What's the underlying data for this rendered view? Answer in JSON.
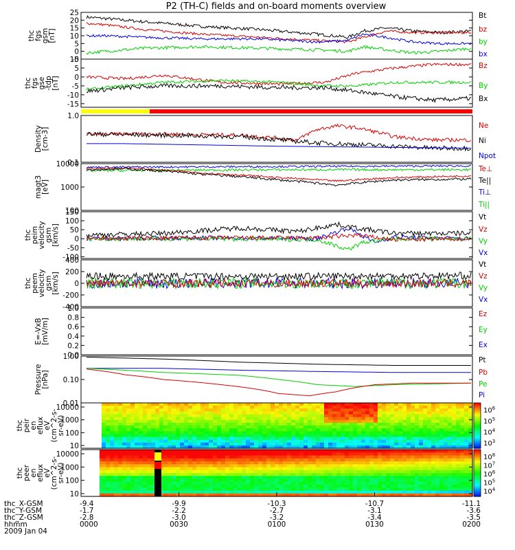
{
  "title": "P2 (TH-C) fields and on-board moments overview",
  "date_label": "2009 Jan 04",
  "colors": {
    "black": "#000000",
    "red": "#d40000",
    "green": "#00d000",
    "blue": "#0000e0",
    "yellow": "#ffff00",
    "barred": "#ff0000"
  },
  "chart_data": [
    {
      "id": "fgs_gsm",
      "type": "line",
      "ylabel": [
        "thc",
        "fgs",
        "gsm",
        "[nT]"
      ],
      "yticks": [
        "25",
        "20",
        "15",
        "10",
        "5",
        "0",
        "-5"
      ],
      "ylim": [
        -5,
        25
      ],
      "legend": [
        {
          "name": "Bt",
          "color": "black"
        },
        {
          "name": "bz",
          "color": "red"
        },
        {
          "name": "by",
          "color": "green"
        },
        {
          "name": "bx",
          "color": "blue"
        }
      ],
      "series": [
        {
          "name": "Bt",
          "color": "black",
          "x": [
            0,
            0.05,
            0.15,
            0.3,
            0.45,
            0.6,
            0.68,
            0.72,
            0.78,
            0.85,
            0.92,
            1.0
          ],
          "y": [
            22,
            21,
            19,
            16,
            14,
            11,
            9,
            13,
            15,
            13,
            12,
            13
          ],
          "noise": 1.0
        },
        {
          "name": "bz",
          "color": "red",
          "x": [
            0,
            0.05,
            0.15,
            0.3,
            0.45,
            0.6,
            0.68,
            0.72,
            0.78,
            0.85,
            0.92,
            1.0
          ],
          "y": [
            18,
            17,
            14,
            11,
            9,
            7,
            6,
            9,
            13,
            12,
            12,
            12
          ],
          "noise": 0.8
        },
        {
          "name": "by",
          "color": "green",
          "x": [
            0,
            0.05,
            0.15,
            0.3,
            0.45,
            0.6,
            0.68,
            0.72,
            0.78,
            0.85,
            0.92,
            1.0
          ],
          "y": [
            -1,
            0,
            2,
            3,
            2,
            1,
            0,
            3,
            1,
            -1,
            0,
            2
          ],
          "noise": 1.0
        },
        {
          "name": "bx",
          "color": "blue",
          "x": [
            0,
            0.05,
            0.15,
            0.3,
            0.45,
            0.6,
            0.68,
            0.72,
            0.78,
            0.85,
            0.92,
            1.0
          ],
          "y": [
            10,
            10,
            9,
            8,
            8,
            6,
            7,
            11,
            9,
            6,
            5,
            5
          ],
          "noise": 0.8
        }
      ]
    },
    {
      "id": "fgs_gse",
      "type": "line",
      "ylabel": [
        "thc",
        "fgs",
        "gse",
        "-tdp",
        "[nT]"
      ],
      "yticks": [
        "10",
        "5",
        "0",
        "-5",
        "-10",
        "-15"
      ],
      "ylim": [
        -17,
        10
      ],
      "legend": [
        {
          "name": "Bz",
          "color": "red"
        },
        {
          "name": "By",
          "color": "green"
        },
        {
          "name": "Bx",
          "color": "black"
        }
      ],
      "series": [
        {
          "name": "Bz",
          "color": "red",
          "x": [
            0,
            0.1,
            0.2,
            0.35,
            0.5,
            0.62,
            0.7,
            0.8,
            0.9,
            1.0
          ],
          "y": [
            0,
            -1,
            1,
            -3,
            -4,
            -3,
            2,
            5,
            7,
            7
          ],
          "noise": 0.8
        },
        {
          "name": "By",
          "color": "green",
          "x": [
            0,
            0.1,
            0.2,
            0.35,
            0.5,
            0.62,
            0.7,
            0.8,
            0.9,
            1.0
          ],
          "y": [
            -7,
            -5,
            -3,
            -2,
            -3,
            -5,
            -5,
            -3,
            -3,
            -3
          ],
          "noise": 0.8
        },
        {
          "name": "Bx",
          "color": "black",
          "x": [
            0,
            0.1,
            0.2,
            0.35,
            0.5,
            0.62,
            0.7,
            0.8,
            0.9,
            1.0
          ],
          "y": [
            -8,
            -6,
            -5,
            -5,
            -6,
            -6,
            -8,
            -11,
            -13,
            -12
          ],
          "noise": 1.2
        }
      ]
    },
    {
      "id": "density",
      "type": "line",
      "log": true,
      "ylabel": [
        "Density",
        "[cm-3]"
      ],
      "yticks": [
        "1.0",
        "0.1"
      ],
      "ylim": [
        0.1,
        1.0
      ],
      "legend": [
        {
          "name": "Ne",
          "color": "red"
        },
        {
          "name": "Ni",
          "color": "black"
        },
        {
          "name": "Npot",
          "color": "blue"
        }
      ],
      "series": [
        {
          "name": "Ne",
          "color": "red",
          "x": [
            0,
            0.2,
            0.4,
            0.55,
            0.6,
            0.65,
            0.7,
            0.8,
            0.9,
            1.0
          ],
          "y": [
            0.4,
            0.4,
            0.38,
            0.3,
            0.5,
            0.6,
            0.55,
            0.35,
            0.3,
            0.3
          ],
          "noise": 0.04
        },
        {
          "name": "Ni",
          "color": "black",
          "x": [
            0,
            0.2,
            0.4,
            0.55,
            0.6,
            0.7,
            0.8,
            0.9,
            1.0
          ],
          "y": [
            0.4,
            0.38,
            0.35,
            0.28,
            0.26,
            0.24,
            0.22,
            0.2,
            0.2
          ],
          "noise": 0.05
        },
        {
          "name": "Npot",
          "color": "blue",
          "x": [
            0,
            0.1,
            0.5,
            1.0
          ],
          "y": [
            0.25,
            0.25,
            0.22,
            0.2
          ],
          "noise": 0.0
        }
      ]
    },
    {
      "id": "temperature",
      "type": "line",
      "log": true,
      "ylabel": [
        "magt3",
        "[eV]"
      ],
      "yticks": [
        "10000",
        "1000",
        "100"
      ],
      "ylim": [
        100,
        10000
      ],
      "legend": [
        {
          "name": "Te⊥",
          "color": "red"
        },
        {
          "name": "Te||",
          "color": "black"
        },
        {
          "name": "Ti⊥",
          "color": "blue"
        },
        {
          "name": "Ti||",
          "color": "green"
        }
      ],
      "series": [
        {
          "name": "Ti⊥",
          "color": "blue",
          "x": [
            0,
            0.5,
            1.0
          ],
          "y": [
            7000,
            7500,
            8000
          ],
          "noise": 0.04
        },
        {
          "name": "Ti||",
          "color": "green",
          "x": [
            0,
            0.5,
            1.0
          ],
          "y": [
            5000,
            5500,
            5500
          ],
          "noise": 0.05
        },
        {
          "name": "Te⊥",
          "color": "red",
          "x": [
            0,
            0.1,
            0.3,
            0.5,
            0.65,
            0.8,
            1.0
          ],
          "y": [
            6000,
            6500,
            4000,
            2500,
            1800,
            2500,
            3000
          ],
          "noise": 0.04
        },
        {
          "name": "Te||",
          "color": "black",
          "x": [
            0,
            0.1,
            0.3,
            0.5,
            0.65,
            0.8,
            1.0
          ],
          "y": [
            5500,
            6000,
            3500,
            2000,
            1200,
            2000,
            2200
          ],
          "noise": 0.05
        }
      ]
    },
    {
      "id": "peim_velocity",
      "type": "line",
      "ylabel": [
        "thc",
        "peim",
        "velocity",
        "gsm",
        "[km/s]"
      ],
      "yticks": [
        "150",
        "100",
        "50",
        "0",
        "-50",
        "-100"
      ],
      "ylim": [
        -110,
        150
      ],
      "legend": [
        {
          "name": "Vt",
          "color": "black"
        },
        {
          "name": "Vz",
          "color": "red"
        },
        {
          "name": "Vy",
          "color": "green"
        },
        {
          "name": "Vx",
          "color": "blue"
        }
      ],
      "series": [
        {
          "name": "Vx",
          "color": "blue",
          "x": [
            0,
            0.3,
            0.6,
            0.68,
            0.75,
            0.8,
            1.0
          ],
          "y": [
            0,
            5,
            0,
            60,
            -20,
            10,
            0
          ],
          "noise": 12
        },
        {
          "name": "Vy",
          "color": "green",
          "x": [
            0,
            0.3,
            0.6,
            0.68,
            0.72,
            0.8,
            1.0
          ],
          "y": [
            0,
            0,
            -5,
            -60,
            -20,
            0,
            0
          ],
          "noise": 12
        },
        {
          "name": "Vz",
          "color": "red",
          "x": [
            0,
            0.3,
            0.6,
            0.7,
            0.8,
            1.0
          ],
          "y": [
            0,
            5,
            5,
            20,
            -5,
            0
          ],
          "noise": 12
        },
        {
          "name": "Vt",
          "color": "black",
          "x": [
            0,
            0.2,
            0.4,
            0.55,
            0.65,
            0.7,
            0.8,
            1.0
          ],
          "y": [
            20,
            30,
            60,
            40,
            80,
            60,
            30,
            30
          ],
          "noise": 14
        }
      ]
    },
    {
      "id": "peem_velocity",
      "type": "line",
      "ylabel": [
        "thc",
        "peem",
        "velocity",
        "gsm",
        "[km/s]"
      ],
      "yticks": [
        "400",
        "200",
        "0",
        "-200",
        "-400"
      ],
      "ylim": [
        -400,
        400
      ],
      "legend": [
        {
          "name": "Vt",
          "color": "black"
        },
        {
          "name": "Vz",
          "color": "red"
        },
        {
          "name": "Vy",
          "color": "green"
        },
        {
          "name": "Vx",
          "color": "blue"
        }
      ],
      "series": [
        {
          "name": "Vx",
          "color": "blue",
          "x": [
            0,
            1.0
          ],
          "y": [
            0,
            0
          ],
          "noise": 90
        },
        {
          "name": "Vy",
          "color": "green",
          "x": [
            0,
            1.0
          ],
          "y": [
            0,
            0
          ],
          "noise": 90
        },
        {
          "name": "Vz",
          "color": "red",
          "x": [
            0,
            1.0
          ],
          "y": [
            0,
            0
          ],
          "noise": 70
        },
        {
          "name": "Vt",
          "color": "black",
          "x": [
            0,
            0.5,
            1.0
          ],
          "y": [
            120,
            120,
            130
          ],
          "noise": 60
        }
      ]
    },
    {
      "id": "efield",
      "type": "line",
      "ylabel": [
        "E=-VxB",
        "[mV/m]"
      ],
      "yticks": [
        "1.0",
        "0.8",
        "0.6",
        "0.4",
        "0.2",
        "0.0"
      ],
      "ylim": [
        0,
        1
      ],
      "legend": [
        {
          "name": "Ez",
          "color": "red"
        },
        {
          "name": "Ey",
          "color": "green"
        },
        {
          "name": "Ex",
          "color": "blue"
        }
      ],
      "series": []
    },
    {
      "id": "pressure",
      "type": "line",
      "log": true,
      "ylabel": [
        "Pressure",
        "[nPa]"
      ],
      "yticks": [
        "1.00",
        "0.10",
        "0.01"
      ],
      "ylim": [
        0.01,
        1.0
      ],
      "legend": [
        {
          "name": "Pt",
          "color": "black"
        },
        {
          "name": "Pb",
          "color": "red"
        },
        {
          "name": "Pe",
          "color": "green"
        },
        {
          "name": "Pi",
          "color": "blue"
        }
      ],
      "series": [
        {
          "name": "Pt",
          "color": "black",
          "x": [
            0,
            0.2,
            0.4,
            0.6,
            0.8,
            1.0
          ],
          "y": [
            0.9,
            0.75,
            0.55,
            0.45,
            0.4,
            0.4
          ],
          "noise": 0.0
        },
        {
          "name": "Pi",
          "color": "blue",
          "x": [
            0,
            0.2,
            0.4,
            0.6,
            0.8,
            1.0
          ],
          "y": [
            0.3,
            0.3,
            0.25,
            0.22,
            0.2,
            0.2
          ],
          "noise": 0.0
        },
        {
          "name": "Pe",
          "color": "green",
          "x": [
            0,
            0.2,
            0.4,
            0.5,
            0.6,
            0.7,
            0.8,
            1.0
          ],
          "y": [
            0.3,
            0.2,
            0.15,
            0.1,
            0.06,
            0.05,
            0.06,
            0.07
          ],
          "noise": 0.0
        },
        {
          "name": "Pb",
          "color": "red",
          "x": [
            0,
            0.1,
            0.2,
            0.35,
            0.5,
            0.58,
            0.65,
            0.75,
            0.85,
            1.0
          ],
          "y": [
            0.28,
            0.16,
            0.1,
            0.06,
            0.025,
            0.02,
            0.03,
            0.06,
            0.07,
            0.07
          ],
          "noise": 0.0
        }
      ]
    },
    {
      "id": "ion_spectrogram",
      "type": "heatmap",
      "ylabel": [
        "thc",
        "peir",
        "en",
        "eflux",
        "eV",
        "(cm^2-s-",
        "sr-eV)"
      ],
      "yticks": [
        "10000",
        "1000",
        "100",
        "10"
      ],
      "ylim": [
        10,
        20000
      ],
      "colorbar_ticks": [
        "10^6",
        "10^5",
        "10^4",
        "10^3"
      ]
    },
    {
      "id": "electron_spectrogram",
      "type": "heatmap",
      "ylabel": [
        "thc",
        "peer",
        "en",
        "eflux",
        "eV",
        "(cm^2-s-",
        "sr-eV)"
      ],
      "yticks": [
        "10000",
        "1000",
        "100",
        "10"
      ],
      "ylim": [
        10,
        20000
      ],
      "colorbar_ticks": [
        "10^8",
        "10^7",
        "10^6",
        "10^5",
        "10^4"
      ]
    }
  ],
  "x_axis": {
    "row_labels": [
      "thc_X-GSM",
      "thc_Y-GSM",
      "thc_Z-GSM",
      "hhmm"
    ],
    "columns": [
      {
        "values": [
          "-9.4",
          "-1.7",
          "-2.8",
          "0000"
        ]
      },
      {
        "values": [
          "-9.9",
          "-2.2",
          "-3.0",
          "0030"
        ]
      },
      {
        "values": [
          "-10.3",
          "-2.7",
          "-3.2",
          "0100"
        ]
      },
      {
        "values": [
          "-10.7",
          "-3.1",
          "-3.4",
          "0130"
        ]
      },
      {
        "values": [
          "-11.1",
          "-3.6",
          "-3.5",
          "0200"
        ]
      }
    ]
  }
}
